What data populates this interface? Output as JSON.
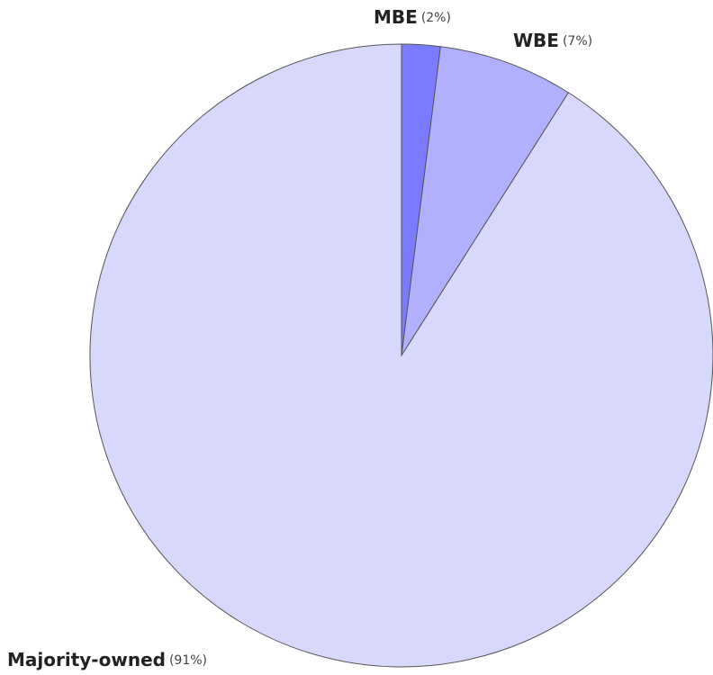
{
  "chart_data": {
    "type": "pie",
    "categories": [
      "MBE",
      "WBE",
      "Majority-owned"
    ],
    "values": [
      2,
      7,
      91
    ],
    "value_labels": [
      "(2%)",
      "(7%)",
      "(91%)"
    ],
    "colors": [
      "#7b7bff",
      "#b0b0ff",
      "#d8d8fc"
    ]
  }
}
